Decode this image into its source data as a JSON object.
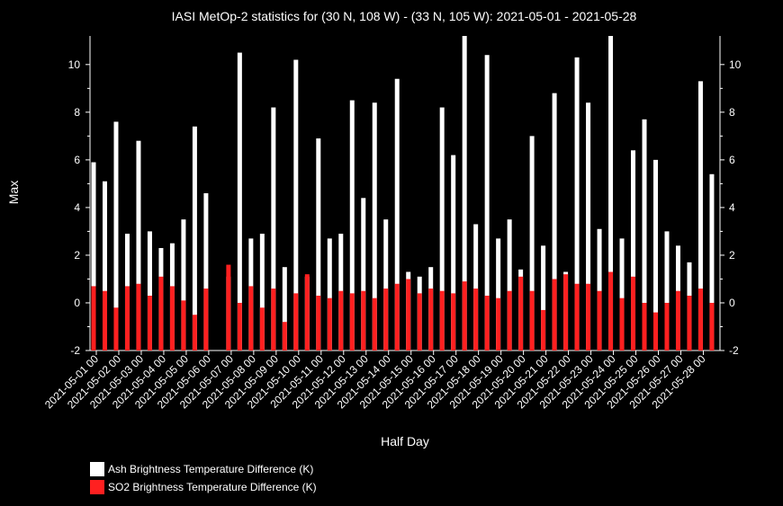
{
  "chart_data": {
    "type": "bar",
    "title": "IASI MetOp-2 statistics for (30 N, 108 W) - (33 N, 105 W): 2021-05-01 - 2021-05-28",
    "xlabel": "Half Day",
    "ylabel": "Max",
    "ylim": [
      -2,
      11.2
    ],
    "yticks": [
      "-2",
      "0",
      "2",
      "4",
      "6",
      "8",
      "10"
    ],
    "xtick_labels": [
      "2021-05-01 00",
      "2021-05-02 00",
      "2021-05-03 00",
      "2021-05-04 00",
      "2021-05-05 00",
      "2021-05-06 00",
      "2021-05-07 00",
      "2021-05-08 00",
      "2021-05-09 00",
      "2021-05-10 00",
      "2021-05-11 00",
      "2021-05-12 00",
      "2021-05-13 00",
      "2021-05-14 00",
      "2021-05-15 00",
      "2021-05-16 00",
      "2021-05-17 00",
      "2021-05-18 00",
      "2021-05-19 00",
      "2021-05-20 00",
      "2021-05-21 00",
      "2021-05-22 00",
      "2021-05-23 00",
      "2021-05-24 00",
      "2021-05-25 00",
      "2021-05-26 00",
      "2021-05-27 00",
      "2021-05-28 00"
    ],
    "series": [
      {
        "name": "Ash Brightness Temperature Difference (K)",
        "color": "#ffffff",
        "values": [
          5.9,
          5.1,
          7.6,
          2.9,
          6.8,
          3.0,
          2.3,
          2.5,
          3.5,
          7.4,
          4.6,
          null,
          1.1,
          10.5,
          2.7,
          2.9,
          8.2,
          1.5,
          10.2,
          1.1,
          6.9,
          2.7,
          2.9,
          8.5,
          4.4,
          8.4,
          3.5,
          9.4,
          1.3,
          1.1,
          1.5,
          8.2,
          6.2,
          11.2,
          3.3,
          10.4,
          2.7,
          3.5,
          1.4,
          7.0,
          2.4,
          8.8,
          1.3,
          10.3,
          8.4,
          3.1,
          11.2,
          2.7,
          6.4,
          7.7,
          6.0,
          3.0,
          2.4,
          1.7,
          9.3,
          5.4
        ]
      },
      {
        "name": "SO2 Brightness Temperature Difference (K)",
        "color": "#ff2020",
        "values": [
          0.7,
          0.5,
          -0.2,
          0.7,
          0.8,
          0.3,
          1.1,
          0.7,
          0.1,
          -0.5,
          0.6,
          null,
          1.6,
          0.0,
          0.7,
          -0.2,
          0.6,
          -0.8,
          0.4,
          1.2,
          0.3,
          0.2,
          0.5,
          0.4,
          0.5,
          0.2,
          0.6,
          0.8,
          1.0,
          0.4,
          0.6,
          0.5,
          0.4,
          0.9,
          0.6,
          0.3,
          0.2,
          0.5,
          1.1,
          0.5,
          -0.3,
          1.0,
          1.2,
          0.8,
          0.8,
          0.5,
          1.3,
          0.2,
          1.1,
          0.0,
          -0.4,
          0.0,
          0.5,
          0.3,
          0.6,
          0.0
        ]
      }
    ]
  }
}
